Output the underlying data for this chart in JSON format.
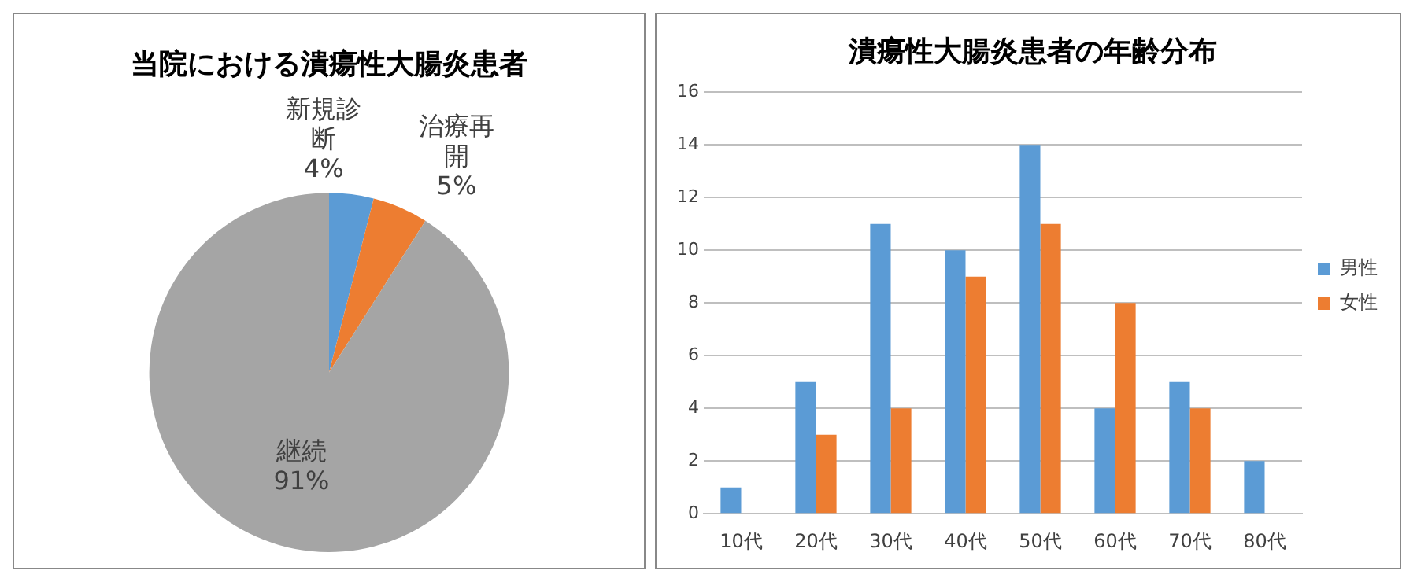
{
  "chart_data": [
    {
      "type": "pie",
      "title": "当院における潰瘍性大腸炎患者",
      "categories": [
        "新規診断",
        "治療再開",
        "継続"
      ],
      "values": [
        4,
        5,
        91
      ],
      "colors": [
        "#5b9bd5",
        "#ed7d31",
        "#a5a5a5"
      ],
      "value_labels": [
        "4%",
        "5%",
        "91%"
      ],
      "legend": false
    },
    {
      "type": "bar",
      "title": "潰瘍性大腸炎患者の年齢分布",
      "categories": [
        "10代",
        "20代",
        "30代",
        "40代",
        "50代",
        "60代",
        "70代",
        "80代"
      ],
      "series": [
        {
          "name": "男性",
          "color": "#5b9bd5",
          "values": [
            1,
            5,
            11,
            10,
            14,
            4,
            5,
            2
          ]
        },
        {
          "name": "女性",
          "color": "#ed7d31",
          "values": [
            null,
            3,
            4,
            9,
            11,
            8,
            4,
            null
          ]
        }
      ],
      "ylim": [
        0,
        16
      ],
      "yticks": [
        0,
        2,
        4,
        6,
        8,
        10,
        12,
        14,
        16
      ],
      "grid": "y",
      "legend": "right"
    }
  ]
}
